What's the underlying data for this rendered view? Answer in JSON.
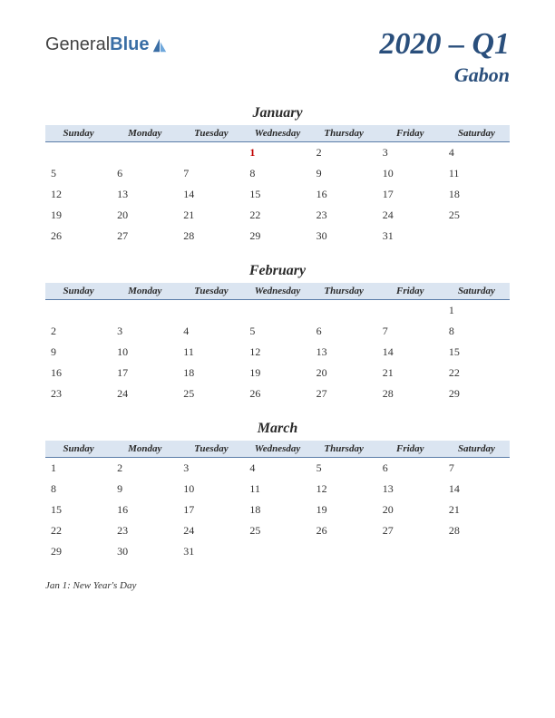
{
  "logo": {
    "part1": "General",
    "part2": "Blue"
  },
  "title": {
    "main": "2020 – Q1",
    "sub": "Gabon"
  },
  "dayHeaders": [
    "Sunday",
    "Monday",
    "Tuesday",
    "Wednesday",
    "Thursday",
    "Friday",
    "Saturday"
  ],
  "months": [
    {
      "name": "January",
      "weeks": [
        [
          "",
          "",
          "",
          "1",
          "2",
          "3",
          "4"
        ],
        [
          "5",
          "6",
          "7",
          "8",
          "9",
          "10",
          "11"
        ],
        [
          "12",
          "13",
          "14",
          "15",
          "16",
          "17",
          "18"
        ],
        [
          "19",
          "20",
          "21",
          "22",
          "23",
          "24",
          "25"
        ],
        [
          "26",
          "27",
          "28",
          "29",
          "30",
          "31",
          ""
        ]
      ],
      "holidays": [
        [
          0,
          3
        ]
      ]
    },
    {
      "name": "February",
      "weeks": [
        [
          "",
          "",
          "",
          "",
          "",
          "",
          "1"
        ],
        [
          "2",
          "3",
          "4",
          "5",
          "6",
          "7",
          "8"
        ],
        [
          "9",
          "10",
          "11",
          "12",
          "13",
          "14",
          "15"
        ],
        [
          "16",
          "17",
          "18",
          "19",
          "20",
          "21",
          "22"
        ],
        [
          "23",
          "24",
          "25",
          "26",
          "27",
          "28",
          "29"
        ]
      ],
      "holidays": []
    },
    {
      "name": "March",
      "weeks": [
        [
          "1",
          "2",
          "3",
          "4",
          "5",
          "6",
          "7"
        ],
        [
          "8",
          "9",
          "10",
          "11",
          "12",
          "13",
          "14"
        ],
        [
          "15",
          "16",
          "17",
          "18",
          "19",
          "20",
          "21"
        ],
        [
          "22",
          "23",
          "24",
          "25",
          "26",
          "27",
          "28"
        ],
        [
          "29",
          "30",
          "31",
          "",
          "",
          "",
          ""
        ]
      ],
      "holidays": []
    }
  ],
  "notes": "Jan 1: New Year's Day",
  "colors": {
    "header_bg": "#dbe5f1",
    "header_border": "#5a7ca8",
    "title_color": "#2a4f7c",
    "holiday_color": "#c00000",
    "text_color": "#333333",
    "background": "#ffffff"
  },
  "typography": {
    "title_fontsize": 34,
    "subtitle_fontsize": 22,
    "month_fontsize": 16,
    "dayheader_fontsize": 11,
    "cell_fontsize": 12,
    "notes_fontsize": 11,
    "font_family": "Georgia, serif"
  }
}
